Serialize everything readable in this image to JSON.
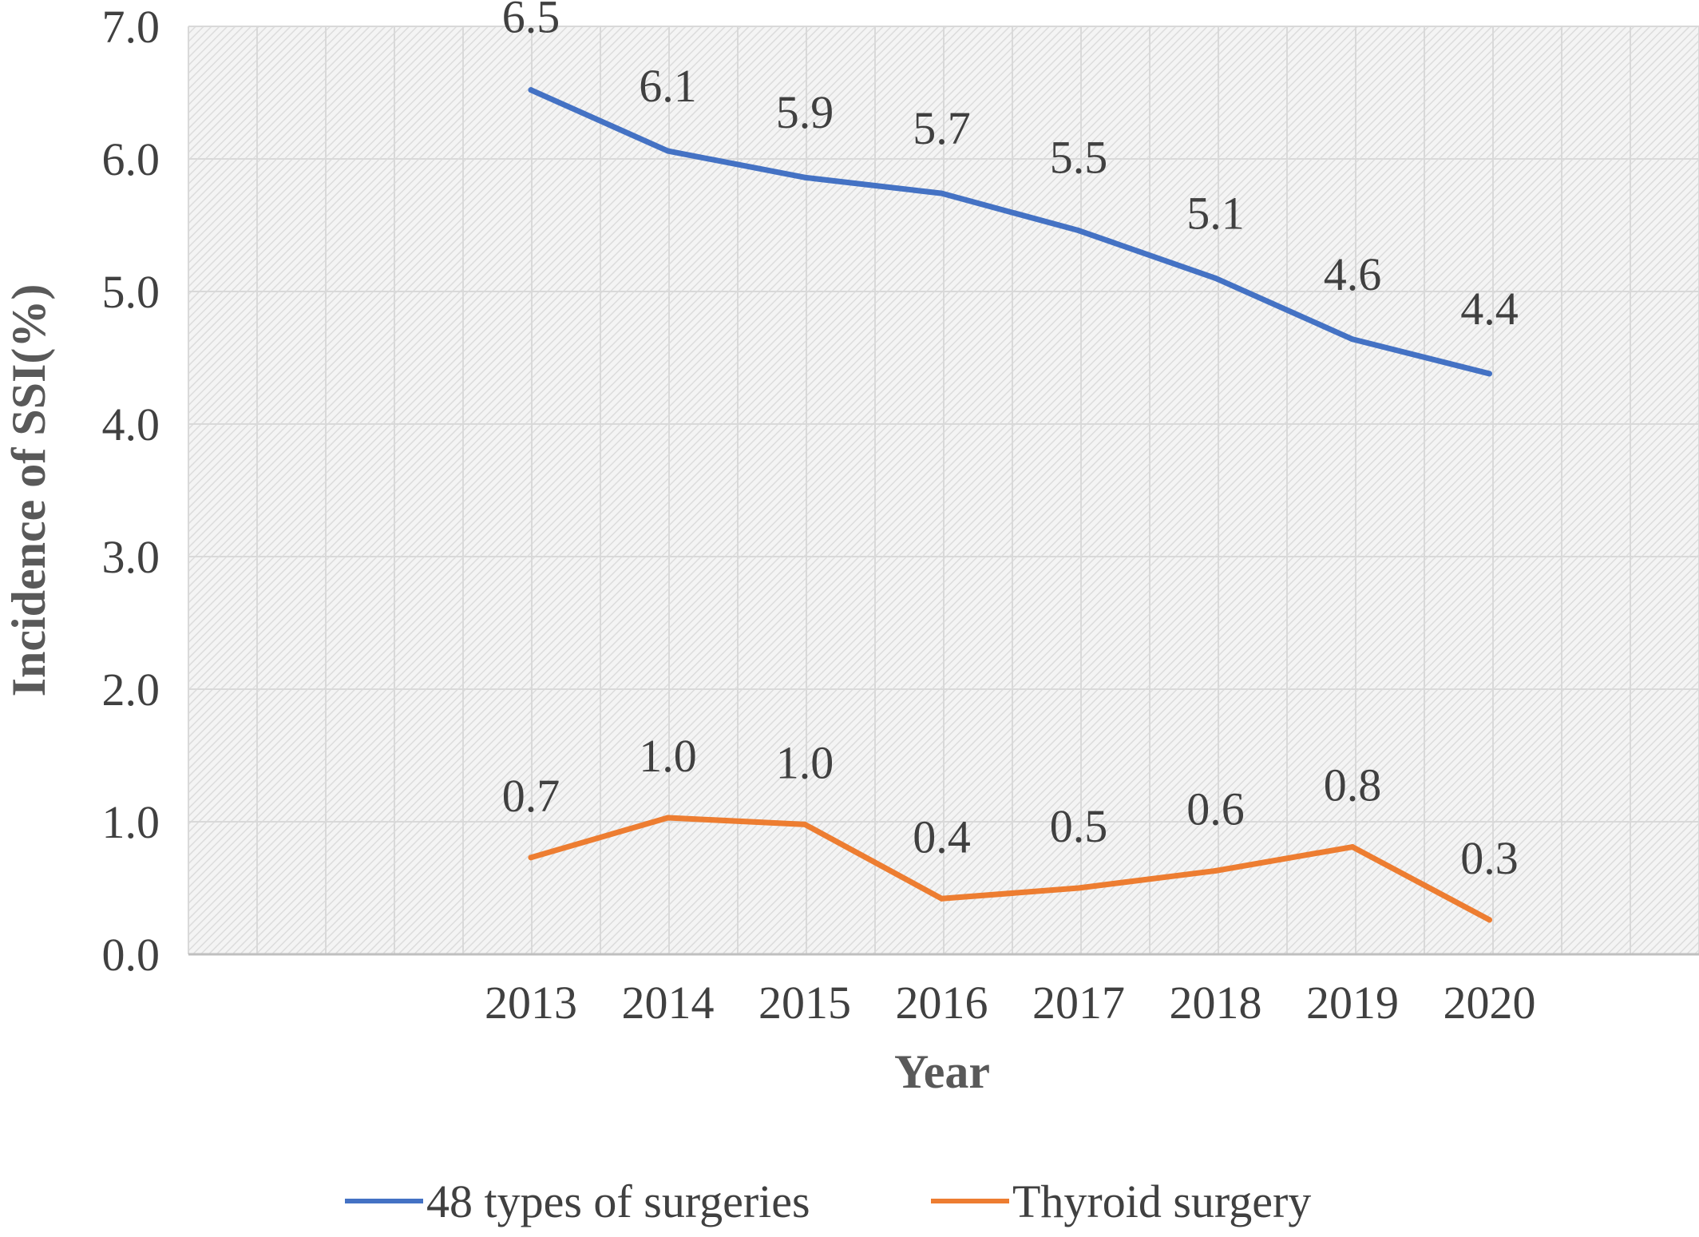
{
  "chart_data": {
    "type": "line",
    "categories": [
      "2013",
      "2014",
      "2015",
      "2016",
      "2017",
      "2018",
      "2019",
      "2020"
    ],
    "series": [
      {
        "name": "48 types of surgeries",
        "color": "#4472C4",
        "values": [
          6.52,
          6.06,
          5.86,
          5.74,
          5.46,
          5.1,
          4.64,
          4.38
        ],
        "labels": [
          "6.5",
          "6.1",
          "5.9",
          "5.7",
          "5.5",
          "5.1",
          "4.6",
          "4.4"
        ]
      },
      {
        "name": "Thyroid surgery",
        "color": "#ED7D31",
        "values": [
          0.73,
          1.03,
          0.98,
          0.42,
          0.5,
          0.63,
          0.81,
          0.26
        ],
        "labels": [
          "0.7",
          "1.0",
          "1.0",
          "0.4",
          "0.5",
          "0.6",
          "0.8",
          "0.3"
        ]
      }
    ],
    "ylim": [
      0,
      7
    ],
    "yticks": [
      "0.0",
      "1.0",
      "2.0",
      "3.0",
      "4.0",
      "5.0",
      "6.0",
      "7.0"
    ],
    "xlabel": "Year",
    "ylabel": "Incidence of SSI(%)",
    "grid": true,
    "legend": "bottom"
  }
}
